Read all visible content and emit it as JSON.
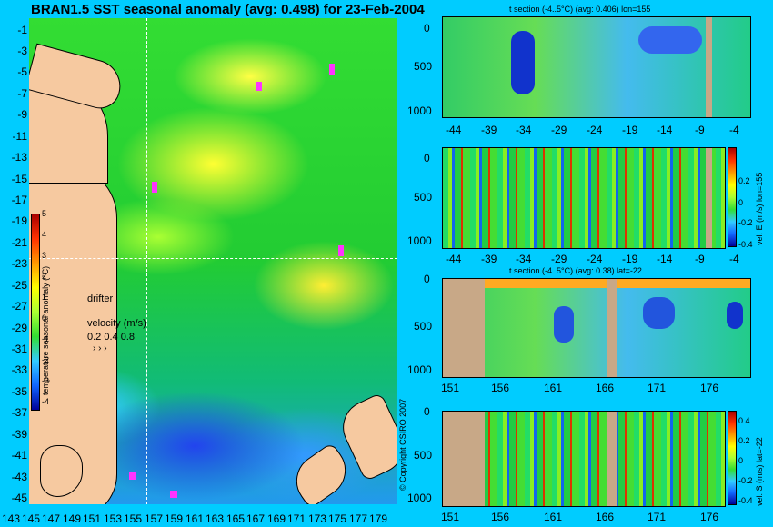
{
  "title": "BRAN1.5 SST seasonal anomaly (avg: 0.498) for 23-Feb-2004",
  "map": {
    "lat_labels": [
      "-1",
      "-3",
      "-5",
      "-7",
      "-9",
      "-11",
      "-13",
      "-15",
      "-17",
      "-19",
      "-21",
      "-23",
      "-25",
      "-27",
      "-29",
      "-31",
      "-33",
      "-35",
      "-37",
      "-39",
      "-41",
      "-43",
      "-45"
    ],
    "lon_labels": [
      "143",
      "145",
      "147",
      "149",
      "151",
      "153",
      "155",
      "157",
      "159",
      "161",
      "163",
      "165",
      "167",
      "169",
      "171",
      "173",
      "175",
      "177",
      "179"
    ],
    "colorbar_ticks": [
      "5",
      "4",
      "3",
      "2",
      "1",
      "0",
      "-1",
      "-2",
      "-3",
      "-4"
    ],
    "colorbar_label": "temperature seasonal anomaly (°C)",
    "drifter_label": "drifter",
    "velocity_label": "velocity (m/s)",
    "velocity_scale": "0.2 0.4 0.8",
    "copyright": "© Copyright CSIRO 2007",
    "crosshair": {
      "lon": 155,
      "lat": -22
    }
  },
  "panels": [
    {
      "title": "t section (-4..5°C) (avg: 0.406) lon=155",
      "yticks": [
        "0",
        "500",
        "1000"
      ],
      "xticks": [
        "-44",
        "-39",
        "-34",
        "-29",
        "-24",
        "-19",
        "-14",
        "-9",
        "-4"
      ]
    },
    {
      "title": "",
      "yticks": [
        "0",
        "500",
        "1000"
      ],
      "xticks": [
        "-44",
        "-39",
        "-34",
        "-29",
        "-24",
        "-19",
        "-14",
        "-9",
        "-4"
      ],
      "colorbar_ticks": [
        "0.2",
        "0",
        "-0.2",
        "-0.4"
      ],
      "colorbar_label": "vel. E (m/s) lon=155"
    },
    {
      "title": "t section (-4..5°C) (avg: 0.38) lat=-22",
      "yticks": [
        "0",
        "500",
        "1000"
      ],
      "xticks": [
        "151",
        "156",
        "161",
        "166",
        "171",
        "176"
      ]
    },
    {
      "title": "",
      "yticks": [
        "0",
        "500",
        "1000"
      ],
      "xticks": [
        "151",
        "156",
        "161",
        "166",
        "171",
        "176"
      ],
      "colorbar_ticks": [
        "0.4",
        "0.2",
        "0",
        "-0.2",
        "-0.4"
      ],
      "colorbar_label": "vel. S (m/s) lat=-22"
    }
  ]
}
